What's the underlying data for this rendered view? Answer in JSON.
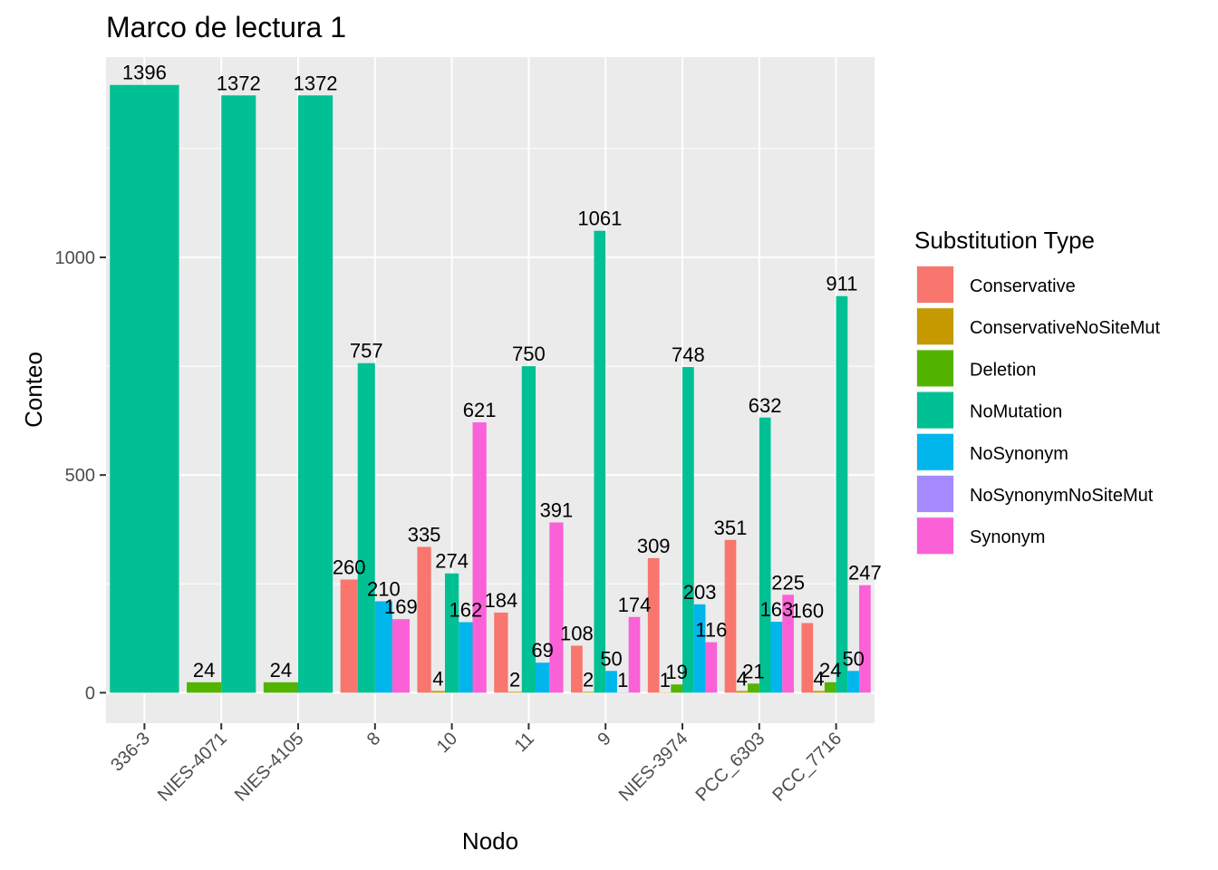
{
  "chart_data": {
    "type": "bar",
    "title": "Marco de lectura 1",
    "xlabel": "Nodo",
    "ylabel": "Conteo",
    "ylim": [
      -70,
      1460
    ],
    "yticks": [
      0,
      500,
      1000
    ],
    "categories": [
      "336-3",
      "NIES-4071",
      "NIES-4105",
      "8",
      "10",
      "11",
      "9",
      "NIES-3974",
      "PCC_6303",
      "PCC_7716"
    ],
    "legend_title": "Substitution Type",
    "legend_position": "right",
    "series": [
      {
        "name": "Conservative",
        "color": "#F8766D",
        "values": [
          null,
          null,
          null,
          260,
          335,
          184,
          108,
          309,
          351,
          160
        ]
      },
      {
        "name": "ConservativeNoSiteMut",
        "color": "#C49A00",
        "values": [
          null,
          null,
          null,
          null,
          4,
          2,
          2,
          1,
          4,
          4
        ]
      },
      {
        "name": "Deletion",
        "color": "#53B400",
        "values": [
          null,
          24,
          24,
          null,
          null,
          null,
          null,
          19,
          21,
          24
        ]
      },
      {
        "name": "NoMutation",
        "color": "#00C094",
        "values": [
          1396,
          1372,
          1372,
          757,
          274,
          750,
          1061,
          748,
          632,
          911
        ]
      },
      {
        "name": "NoSynonym",
        "color": "#00B6EB",
        "values": [
          null,
          null,
          null,
          210,
          162,
          69,
          50,
          203,
          163,
          50
        ]
      },
      {
        "name": "NoSynonymNoSiteMut",
        "color": "#A58AFF",
        "values": [
          null,
          null,
          null,
          null,
          null,
          null,
          1,
          null,
          null,
          null
        ]
      },
      {
        "name": "Synonym",
        "color": "#FB61D7",
        "values": [
          null,
          null,
          null,
          169,
          621,
          391,
          174,
          116,
          225,
          247
        ]
      }
    ]
  }
}
